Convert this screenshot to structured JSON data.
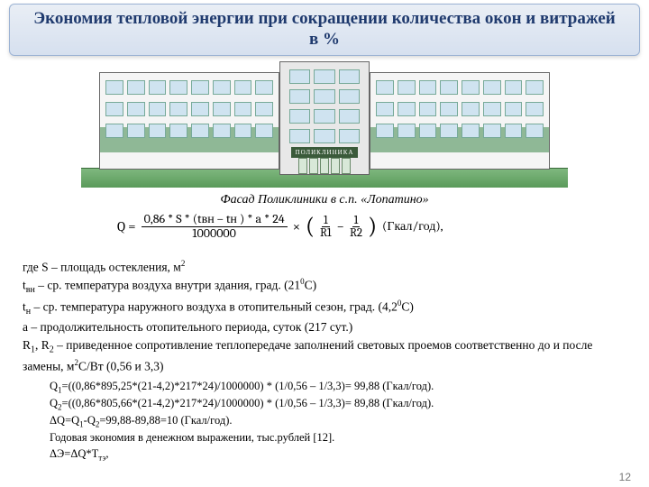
{
  "title": "Экономия тепловой энергии при сокращении количества окон и витражей в %",
  "building_sign": "ПОЛИКЛИНИКА",
  "caption": "Фасад Поликлиники в с.п. «Лопатино»",
  "formula": {
    "Q": "Q =",
    "numerator": "0,86 * S * (tвн – tн ) * a * 24",
    "denominator": "1000000",
    "times": "×",
    "lp": "(",
    "f1n": "1",
    "f1d": "R1",
    "minus": "−",
    "f2n": "1",
    "f2d": "R2",
    "rp": ")",
    "unit": "(Гкал/год),"
  },
  "legend": {
    "l1a": "где S – площадь остекления, м",
    "l1sup": "2",
    "l2a": "t",
    "l2sub": "вн",
    "l2b": " – ср. температура воздуха внутри здания, град. (21",
    "l2sup": "0",
    "l2c": "С)",
    "l3a": "t",
    "l3sub": "н",
    "l3b": " – ср. температура наружного воздуха в отопительный сезон, град. (4,2",
    "l3sup": "0",
    "l3c": "С)",
    "l4": "a – продолжительность отопительного периода, суток (217 сут.)",
    "l5a": "R",
    "l5s1": "1",
    "l5b": ", R",
    "l5s2": "2",
    "l5c": " – приведенное сопротивление теплопередаче заполнений световых проемов соответственно до и после замены, м",
    "l5sup": "2",
    "l5d": "С/Вт (0,56 и 3,3)"
  },
  "calc": {
    "c1a": "Q",
    "c1s": "1",
    "c1b": "=((0,86*895,25*(21-4,2)*217*24)/1000000) * (1/0,56 – 1/3,3)= 99,88 (Гкал/год).",
    "c2a": "Q",
    "c2s": "2",
    "c2b": "=((0,86*805,66*(21-4,2)*217*24)/1000000) * (1/0,56 – 1/3,3)= 89,88 (Гкал/год).",
    "c3a": "ΔQ=Q",
    "c3s1": "1",
    "c3b": "-Q",
    "c3s2": "2",
    "c3c": "=99,88-89,88=10 (Гкал/год).",
    "c4": "Годовая экономия в денежном выражении, тыс.рублей [12].",
    "c5a": "ΔЭ=ΔQ*T",
    "c5s": "тэ",
    "c5b": ","
  },
  "pagenum": "12",
  "colors": {
    "title_text": "#1f3a6e",
    "banner_top": "#e9eef5",
    "banner_bottom": "#d6e0ef",
    "window": "#cfe3f0",
    "green": "#8fb896"
  }
}
